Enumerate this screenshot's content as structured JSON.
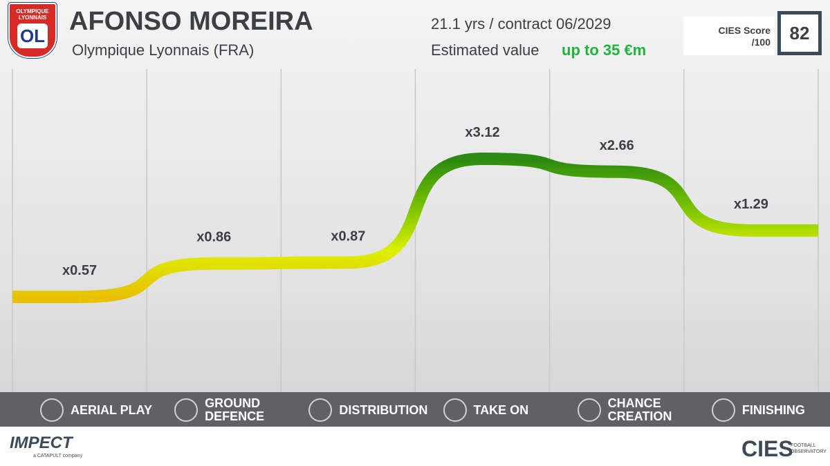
{
  "header": {
    "club_logo_text": "OLYMPIQUE LYONNAIS",
    "club_logo_mark": "OL",
    "player": "AFONSO MOREIRA",
    "club": "Olympique Lyonnais (FRA)",
    "age_contract": "21.1 yrs / contract 06/2029",
    "value_label": "Estimated value",
    "value": "up to 35 €m",
    "score_label": "CIES Score",
    "score_max": "/100",
    "score": 82
  },
  "chart_data": {
    "type": "line",
    "categories": [
      "AERIAL PLAY",
      "GROUND DEFENCE",
      "DISTRIBUTION",
      "TAKE ON",
      "CHANCE CREATION",
      "FINISHING"
    ],
    "values": [
      0.57,
      0.86,
      0.87,
      3.12,
      2.66,
      1.29
    ],
    "value_labels": [
      "x0.57",
      "x0.86",
      "x0.87",
      "x3.12",
      "x2.66",
      "x1.29"
    ],
    "log_scale": true,
    "gradient": [
      "#2a8a12",
      "#74c000",
      "#dcf000",
      "#e8c000"
    ]
  },
  "footer": {
    "left_brand": "IMPECT",
    "left_sub": "a CATAPULT company",
    "right_brand": "CIES",
    "right_sub": "FOOTBALL OBSERVATORY"
  }
}
